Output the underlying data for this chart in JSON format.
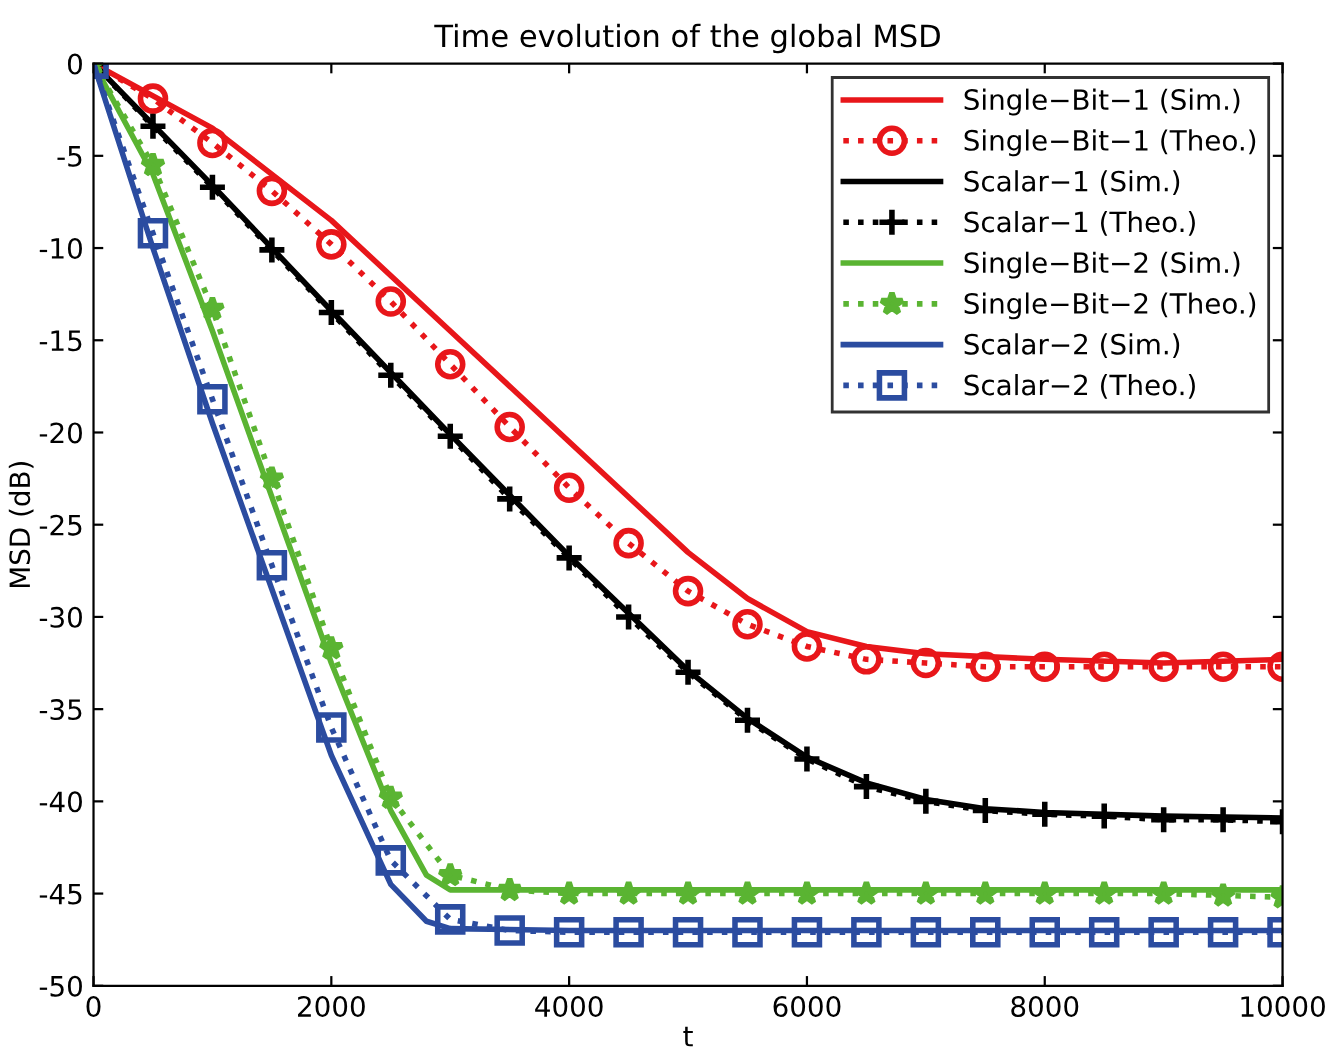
{
  "chart_data": {
    "type": "line",
    "title": "Time evolution of the global MSD",
    "xlabel": "t",
    "ylabel": "MSD (dB)",
    "xlim": [
      0,
      10000
    ],
    "ylim": [
      -50,
      0
    ],
    "xticks": [
      0,
      2000,
      4000,
      6000,
      8000,
      10000
    ],
    "yticks": [
      -50,
      -45,
      -40,
      -35,
      -30,
      -25,
      -20,
      -15,
      -10,
      -5,
      0
    ],
    "grid": false,
    "legend": "top right",
    "series": [
      {
        "name": "Single−Bit−1 (Sim.)",
        "color": "#e8161a",
        "marker": "none",
        "line_style": "solid",
        "x": [
          0,
          1000,
          2000,
          3000,
          4000,
          5000,
          5500,
          6000,
          6500,
          7000,
          8000,
          9000,
          10000
        ],
        "values": [
          0,
          -3.5,
          -8.5,
          -14.5,
          -20.5,
          -26.5,
          -29,
          -30.8,
          -31.6,
          -32,
          -32.3,
          -32.5,
          -32.3
        ]
      },
      {
        "name": "Single−Bit−1 (Theo.)",
        "color": "#e8161a",
        "marker": "circle",
        "line_style": "dotted",
        "x": [
          0,
          500,
          1000,
          1500,
          2000,
          2500,
          3000,
          3500,
          4000,
          4500,
          5000,
          5500,
          6000,
          6500,
          7000,
          7500,
          8000,
          8500,
          9000,
          9500,
          10000
        ],
        "values": [
          0,
          -1.9,
          -4.3,
          -6.9,
          -9.8,
          -12.9,
          -16.3,
          -19.7,
          -23,
          -26,
          -28.6,
          -30.4,
          -31.6,
          -32.3,
          -32.5,
          -32.7,
          -32.7,
          -32.7,
          -32.7,
          -32.7,
          -32.7
        ]
      },
      {
        "name": "Scalar−1 (Sim.)",
        "color": "#000000",
        "marker": "none",
        "line_style": "solid",
        "x": [
          0,
          1000,
          2000,
          3000,
          4000,
          5000,
          5500,
          6000,
          6500,
          7000,
          7500,
          8000,
          9000,
          10000
        ],
        "values": [
          0,
          -6.6,
          -13.4,
          -20.1,
          -26.7,
          -32.9,
          -35.5,
          -37.6,
          -39,
          -39.9,
          -40.4,
          -40.6,
          -40.8,
          -40.9
        ]
      },
      {
        "name": "Scalar−1 (Theo.)",
        "color": "#000000",
        "marker": "cross",
        "line_style": "dotted",
        "x": [
          0,
          500,
          1000,
          1500,
          2000,
          2500,
          3000,
          3500,
          4000,
          4500,
          5000,
          5500,
          6000,
          6500,
          7000,
          7500,
          8000,
          8500,
          9000,
          9500,
          10000
        ],
        "values": [
          0,
          -3.4,
          -6.7,
          -10.1,
          -13.5,
          -16.9,
          -20.2,
          -23.6,
          -26.8,
          -30,
          -33,
          -35.6,
          -37.7,
          -39.2,
          -40,
          -40.5,
          -40.7,
          -40.8,
          -41,
          -41,
          -41.1
        ]
      },
      {
        "name": "Single−Bit−2 (Sim.)",
        "color": "#5ab432",
        "marker": "none",
        "line_style": "solid",
        "x": [
          0,
          500,
          1000,
          1500,
          2000,
          2500,
          2800,
          3000,
          4000,
          5000,
          6000,
          7000,
          8000,
          9000,
          10000
        ],
        "values": [
          0,
          -6,
          -14.5,
          -23.5,
          -32.5,
          -40.5,
          -44,
          -44.8,
          -44.8,
          -44.8,
          -44.8,
          -44.8,
          -44.8,
          -44.8,
          -44.8
        ]
      },
      {
        "name": "Single−Bit−2 (Theo.)",
        "color": "#5ab432",
        "marker": "star",
        "line_style": "dotted",
        "x": [
          0,
          500,
          1000,
          1500,
          2000,
          2500,
          3000,
          3500,
          4000,
          4500,
          5000,
          5500,
          6000,
          6500,
          7000,
          7500,
          8000,
          8500,
          9000,
          9500,
          10000
        ],
        "values": [
          0,
          -5.5,
          -13.3,
          -22.5,
          -31.7,
          -39.8,
          -44,
          -44.8,
          -45,
          -45,
          -45,
          -45,
          -45,
          -45,
          -45,
          -45,
          -45,
          -45,
          -45,
          -45.1,
          -45.2
        ]
      },
      {
        "name": "Scalar−2 (Sim.)",
        "color": "#2b4ca0",
        "marker": "none",
        "line_style": "solid",
        "x": [
          0,
          500,
          1000,
          1500,
          2000,
          2500,
          2800,
          3000,
          4000,
          5000,
          6000,
          7000,
          8000,
          9000,
          10000
        ],
        "values": [
          0,
          -10,
          -19.5,
          -28.5,
          -37.5,
          -44.5,
          -46.5,
          -46.9,
          -47,
          -47,
          -47,
          -47,
          -47,
          -47,
          -47
        ]
      },
      {
        "name": "Scalar−2 (Theo.)",
        "color": "#2b4ca0",
        "marker": "square",
        "line_style": "dotted",
        "x": [
          0,
          500,
          1000,
          1500,
          2000,
          2500,
          3000,
          3500,
          4000,
          4500,
          5000,
          5500,
          6000,
          6500,
          7000,
          7500,
          8000,
          8500,
          9000,
          9500,
          10000
        ],
        "values": [
          0,
          -9.2,
          -18.2,
          -27.2,
          -36,
          -43.2,
          -46.4,
          -47,
          -47.1,
          -47.1,
          -47.1,
          -47.1,
          -47.1,
          -47.1,
          -47.1,
          -47.1,
          -47.1,
          -47.1,
          -47.1,
          -47.1,
          -47.1
        ]
      }
    ]
  }
}
